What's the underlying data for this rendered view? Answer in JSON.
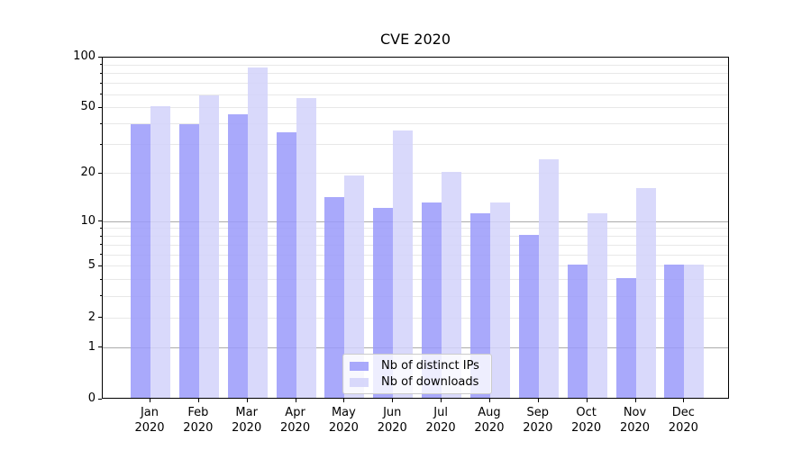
{
  "title": "CVE 2020",
  "chart_data": {
    "type": "bar",
    "title": "CVE 2020",
    "categories": [
      "Jan 2020",
      "Feb 2020",
      "Mar 2020",
      "Apr 2020",
      "May 2020",
      "Jun 2020",
      "Jul 2020",
      "Aug 2020",
      "Sep 2020",
      "Oct 2020",
      "Nov 2020",
      "Dec 2020"
    ],
    "series": [
      {
        "name": "Nb of distinct IPs",
        "color": "#9a9afa",
        "alpha": 0.85,
        "values": [
          39,
          39,
          45,
          35,
          14,
          12,
          13,
          11,
          8,
          5,
          4,
          5
        ]
      },
      {
        "name": "Nb of downloads",
        "color": "#d2d2fa",
        "alpha": 0.85,
        "values": [
          50,
          58,
          85,
          56,
          19,
          36,
          20,
          13,
          24,
          11,
          16,
          5
        ]
      }
    ],
    "xlabel": "",
    "ylabel": "",
    "yscale": "log1p",
    "ylim": [
      0,
      100
    ],
    "y_tick_labels": [
      0,
      1,
      2,
      5,
      10,
      20,
      50,
      100
    ],
    "grid": {
      "major": [
        1,
        10
      ],
      "minor": [
        2,
        3,
        4,
        5,
        6,
        7,
        8,
        9,
        20,
        30,
        40,
        50,
        60,
        70,
        80,
        90
      ],
      "major_color": "#ababab",
      "minor_color": "#e8e8e8"
    },
    "legend": {
      "position": "inside lower-center"
    },
    "axis_color": "#000000",
    "background": "#ffffff"
  }
}
